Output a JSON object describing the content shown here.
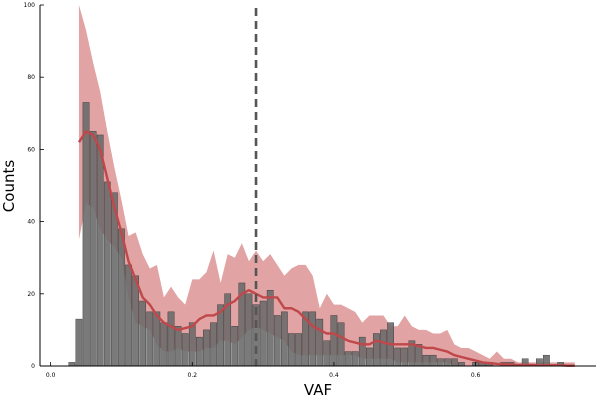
{
  "chart_data": {
    "type": "bar",
    "title": "",
    "xlabel": "VAF",
    "ylabel": "Counts",
    "xlim": [
      -0.015,
      0.77
    ],
    "ylim": [
      0,
      100
    ],
    "x_ticks": [
      0.0,
      0.2,
      0.4,
      0.6
    ],
    "x_tick_labels": [
      "0.0",
      "0.2",
      "0.4",
      "0.6"
    ],
    "y_ticks": [
      0,
      20,
      40,
      60,
      80,
      100
    ],
    "y_tick_labels": [
      "0",
      "20",
      "40",
      "60",
      "80",
      "100"
    ],
    "grid": false,
    "legend": "none",
    "colors": {
      "bars": "#6b6b6b",
      "band": "#d98c8c",
      "line": "#c0474a",
      "vline": "#555555"
    },
    "histogram": {
      "bin_width": 0.01,
      "bin_centers": [
        0.03,
        0.04,
        0.05,
        0.06,
        0.07,
        0.08,
        0.09,
        0.1,
        0.11,
        0.12,
        0.13,
        0.14,
        0.15,
        0.16,
        0.17,
        0.18,
        0.19,
        0.2,
        0.21,
        0.22,
        0.23,
        0.24,
        0.25,
        0.26,
        0.27,
        0.28,
        0.29,
        0.3,
        0.31,
        0.32,
        0.33,
        0.34,
        0.35,
        0.36,
        0.37,
        0.38,
        0.39,
        0.4,
        0.41,
        0.42,
        0.43,
        0.44,
        0.45,
        0.46,
        0.47,
        0.48,
        0.49,
        0.5,
        0.51,
        0.52,
        0.53,
        0.54,
        0.55,
        0.56,
        0.57,
        0.58,
        0.59,
        0.6,
        0.61,
        0.62,
        0.63,
        0.64,
        0.65,
        0.66,
        0.67,
        0.68,
        0.69,
        0.7,
        0.71,
        0.72,
        0.73,
        0.74
      ],
      "counts": [
        1,
        13,
        73,
        65,
        64,
        51,
        48,
        38,
        28,
        25,
        18,
        15,
        15,
        12,
        15,
        11,
        9,
        12,
        8,
        10,
        12,
        17,
        20,
        11,
        23,
        20,
        17,
        18,
        21,
        14,
        15,
        9,
        9,
        15,
        15,
        13,
        7,
        14,
        12,
        4,
        4,
        8,
        5,
        9,
        10,
        12,
        5,
        5,
        7,
        6,
        3,
        3,
        2,
        2,
        2,
        1,
        0,
        1,
        1,
        1,
        0,
        1,
        1,
        0,
        2,
        0,
        2,
        3,
        0,
        1,
        0,
        0,
        1,
        0
      ]
    },
    "vline": {
      "x": 0.29,
      "style": "dashed"
    },
    "fit_line": {
      "x": [
        0.04,
        0.05,
        0.06,
        0.07,
        0.08,
        0.09,
        0.1,
        0.11,
        0.12,
        0.13,
        0.14,
        0.15,
        0.16,
        0.17,
        0.18,
        0.19,
        0.2,
        0.21,
        0.22,
        0.23,
        0.24,
        0.25,
        0.26,
        0.27,
        0.28,
        0.29,
        0.3,
        0.31,
        0.32,
        0.33,
        0.34,
        0.35,
        0.36,
        0.37,
        0.38,
        0.39,
        0.4,
        0.41,
        0.42,
        0.43,
        0.44,
        0.45,
        0.46,
        0.47,
        0.48,
        0.49,
        0.5,
        0.51,
        0.52,
        0.53,
        0.54,
        0.55,
        0.56,
        0.57,
        0.58,
        0.59,
        0.6,
        0.61,
        0.62,
        0.63,
        0.64,
        0.65,
        0.66,
        0.67,
        0.68,
        0.69,
        0.7,
        0.71,
        0.72,
        0.73,
        0.74
      ],
      "y": [
        62,
        65,
        64,
        60,
        52,
        44,
        37,
        29,
        24,
        19,
        17,
        14,
        12,
        11,
        10,
        10.5,
        11,
        13,
        14,
        14,
        15,
        17,
        18,
        20,
        21,
        20,
        19,
        19,
        19,
        16,
        16,
        15,
        13,
        11,
        10,
        9,
        9,
        8,
        7,
        6.5,
        6,
        6,
        7,
        6.5,
        6,
        6,
        6,
        6,
        5.5,
        5,
        5,
        4.5,
        4,
        3,
        2.5,
        2,
        1.5,
        1,
        0.8,
        0.6,
        0.5,
        0.4,
        0.3,
        0.3,
        0.3,
        0.2,
        0.2,
        0.2,
        0.2,
        0.1,
        0.1
      ]
    },
    "band": {
      "x": [
        0.04,
        0.05,
        0.06,
        0.07,
        0.08,
        0.09,
        0.1,
        0.11,
        0.12,
        0.13,
        0.14,
        0.15,
        0.16,
        0.17,
        0.18,
        0.19,
        0.2,
        0.21,
        0.22,
        0.23,
        0.24,
        0.25,
        0.26,
        0.27,
        0.28,
        0.29,
        0.3,
        0.31,
        0.32,
        0.33,
        0.34,
        0.35,
        0.36,
        0.37,
        0.38,
        0.39,
        0.4,
        0.41,
        0.42,
        0.43,
        0.44,
        0.45,
        0.46,
        0.47,
        0.48,
        0.49,
        0.5,
        0.51,
        0.52,
        0.53,
        0.54,
        0.55,
        0.56,
        0.57,
        0.58,
        0.59,
        0.6,
        0.61,
        0.62,
        0.63,
        0.64,
        0.65,
        0.66,
        0.67,
        0.68,
        0.69,
        0.7,
        0.71,
        0.72,
        0.73,
        0.74
      ],
      "upper": [
        100,
        93,
        84,
        76,
        65,
        55,
        46,
        36,
        37,
        31,
        27,
        28,
        19,
        22,
        19,
        17,
        24,
        24,
        26,
        32,
        23,
        31,
        30,
        34,
        29,
        32,
        29,
        31,
        28,
        25,
        27,
        28,
        28,
        25,
        16,
        20,
        17,
        17,
        16,
        15,
        12,
        14,
        14,
        14,
        11,
        11,
        14,
        11,
        10,
        10,
        9,
        9,
        10,
        6,
        5,
        5,
        4,
        3,
        2,
        4,
        2,
        2,
        1,
        1,
        1,
        1,
        1,
        1,
        1,
        1,
        1
      ],
      "lower": [
        35,
        45,
        44,
        38,
        35,
        33,
        30,
        19,
        12,
        11,
        10,
        6,
        4,
        4,
        5,
        4,
        4,
        4,
        5,
        5,
        7,
        7,
        6,
        8,
        10,
        11,
        10,
        9,
        8,
        7,
        4,
        3,
        3,
        3,
        3,
        3,
        3,
        3,
        3,
        3,
        2,
        2,
        2,
        2,
        2,
        1,
        1,
        1,
        1,
        1,
        1,
        1,
        1,
        0,
        0,
        0,
        0,
        0,
        0,
        0,
        0,
        0,
        0,
        0,
        0,
        0,
        0,
        0,
        0,
        0,
        0
      ]
    }
  }
}
